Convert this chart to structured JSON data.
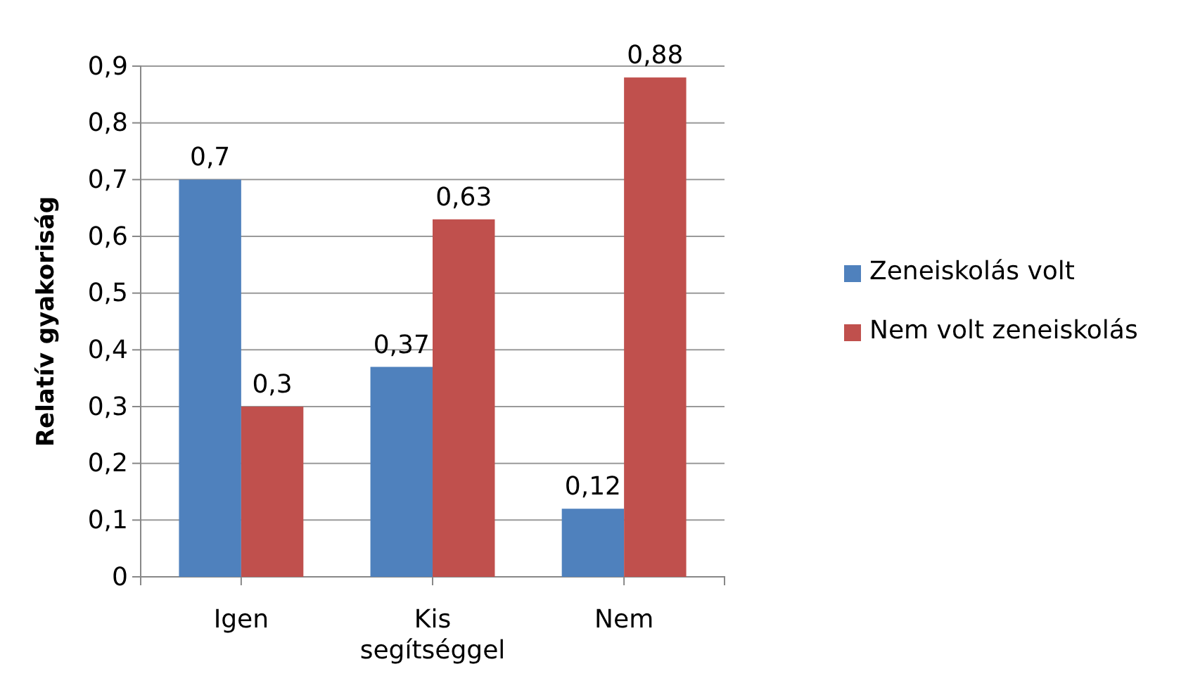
{
  "chart_data": {
    "type": "bar",
    "ylabel": "Relatív gyakoriság",
    "categories": [
      "Igen",
      "Kis segítséggel",
      "Nem"
    ],
    "series": [
      {
        "name": "Zeneiskolás volt",
        "color": "#4f81bd",
        "values": [
          0.7,
          0.37,
          0.12
        ],
        "value_labels": [
          "0,7",
          "0,37",
          "0,12"
        ]
      },
      {
        "name": "Nem volt zeneiskolás",
        "color": "#c0504d",
        "values": [
          0.3,
          0.63,
          0.88
        ],
        "value_labels": [
          "0,3",
          "0,63",
          "0,88"
        ]
      }
    ],
    "ylim": [
      0,
      0.9
    ],
    "yticks": [
      0,
      {
        "value": 0.1,
        "label": "0,1"
      },
      {
        "value": 0.2,
        "label": "0,2"
      },
      {
        "value": 0.3,
        "label": "0,3"
      },
      {
        "value": 0.4,
        "label": "0,4"
      },
      {
        "value": 0.5,
        "label": "0,5"
      },
      {
        "value": 0.6,
        "label": "0,6"
      },
      {
        "value": 0.7,
        "label": "0,7"
      },
      {
        "value": 0.8,
        "label": "0,8"
      },
      {
        "value": 0.9,
        "label": "0,9"
      }
    ],
    "grid": "y",
    "legend": "right"
  }
}
